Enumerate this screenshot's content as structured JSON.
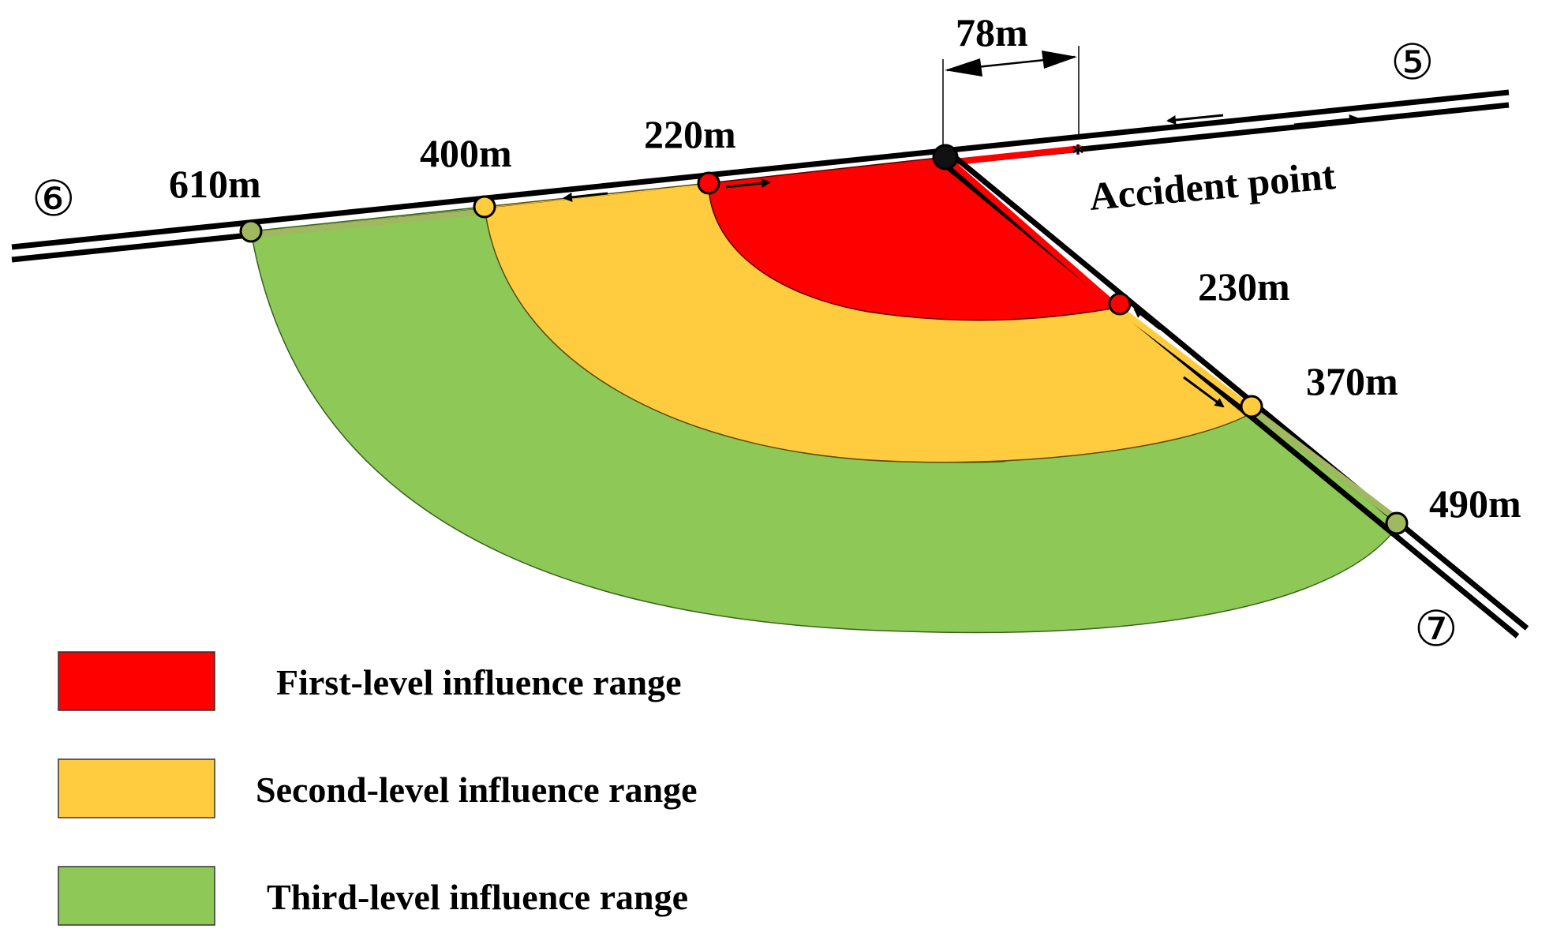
{
  "colors": {
    "first_level": "#ff0000",
    "second_level": "#ffcc3f",
    "third_level": "#8ec957",
    "road": "#000000",
    "green_marker": "#a0b860"
  },
  "labels": {
    "gap": "78m",
    "accident_point": "Accident  point",
    "node_5": "⑤",
    "node_6": "⑥",
    "node_7": "⑦"
  },
  "distances": {
    "west": {
      "first": "220m",
      "second": "400m",
      "third": "610m"
    },
    "south": {
      "first": "230m",
      "second": "370m",
      "third": "490m"
    }
  },
  "legend": [
    {
      "label": "First-level influence range",
      "color": "#ff0000"
    },
    {
      "label": "Second-level influence range",
      "color": "#ffcc3f"
    },
    {
      "label": "Third-level influence range",
      "color": "#8ec957"
    }
  ]
}
